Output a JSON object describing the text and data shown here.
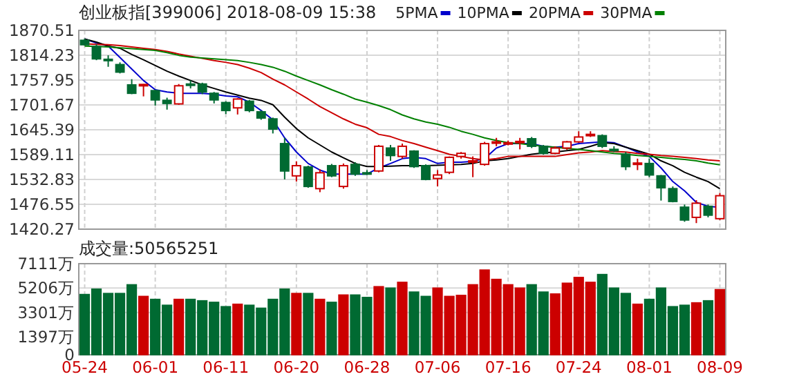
{
  "chart_data": [
    {
      "type": "candlestick",
      "title": "创业板指[399006] 2018-08-09 15:38",
      "ohlc": [
        [
          1848,
          1852,
          1836,
          1838
        ],
        [
          1834,
          1839,
          1803,
          1806
        ],
        [
          1805,
          1814,
          1788,
          1804
        ],
        [
          1793,
          1798,
          1773,
          1776
        ],
        [
          1747,
          1760,
          1726,
          1728
        ],
        [
          1746,
          1749,
          1721,
          1748
        ],
        [
          1734,
          1736,
          1700,
          1713
        ],
        [
          1712,
          1718,
          1691,
          1705
        ],
        [
          1704,
          1749,
          1702,
          1745
        ],
        [
          1749,
          1757,
          1739,
          1747
        ],
        [
          1749,
          1752,
          1726,
          1731
        ],
        [
          1728,
          1731,
          1705,
          1713
        ],
        [
          1707,
          1710,
          1681,
          1689
        ],
        [
          1695,
          1717,
          1680,
          1715
        ],
        [
          1710,
          1713,
          1685,
          1689
        ],
        [
          1686,
          1689,
          1668,
          1672
        ],
        [
          1670,
          1673,
          1637,
          1647
        ],
        [
          1614,
          1627,
          1533,
          1552
        ],
        [
          1541,
          1574,
          1528,
          1564
        ],
        [
          1561,
          1564,
          1514,
          1517
        ],
        [
          1512,
          1556,
          1504,
          1548
        ],
        [
          1564,
          1568,
          1538,
          1541
        ],
        [
          1517,
          1569,
          1512,
          1564
        ],
        [
          1567,
          1572,
          1541,
          1545
        ],
        [
          1548,
          1554,
          1543,
          1547
        ],
        [
          1552,
          1611,
          1549,
          1608
        ],
        [
          1604,
          1611,
          1575,
          1587
        ],
        [
          1585,
          1614,
          1580,
          1608
        ],
        [
          1597,
          1599,
          1559,
          1562
        ],
        [
          1564,
          1567,
          1531,
          1533
        ],
        [
          1535,
          1554,
          1517,
          1543
        ],
        [
          1549,
          1585,
          1545,
          1583
        ],
        [
          1585,
          1595,
          1580,
          1592
        ],
        [
          1574,
          1585,
          1538,
          1575
        ],
        [
          1567,
          1618,
          1564,
          1614
        ],
        [
          1617,
          1627,
          1608,
          1618
        ],
        [
          1615,
          1621,
          1610,
          1616
        ],
        [
          1618,
          1627,
          1601,
          1619
        ],
        [
          1625,
          1629,
          1604,
          1608
        ],
        [
          1608,
          1611,
          1589,
          1592
        ],
        [
          1592,
          1608,
          1590,
          1604
        ],
        [
          1604,
          1620,
          1600,
          1618
        ],
        [
          1618,
          1642,
          1616,
          1629
        ],
        [
          1634,
          1642,
          1629,
          1635
        ],
        [
          1632,
          1635,
          1604,
          1608
        ],
        [
          1601,
          1608,
          1595,
          1600
        ],
        [
          1590,
          1595,
          1554,
          1562
        ],
        [
          1568,
          1580,
          1554,
          1570
        ],
        [
          1569,
          1580,
          1538,
          1543
        ],
        [
          1541,
          1543,
          1485,
          1514
        ],
        [
          1512,
          1517,
          1481,
          1483
        ],
        [
          1470,
          1476,
          1437,
          1441
        ],
        [
          1447,
          1486,
          1434,
          1479
        ],
        [
          1472,
          1476,
          1447,
          1452
        ],
        [
          1444,
          1502,
          1441,
          1496
        ]
      ],
      "series": [
        {
          "name": "5PMA",
          "type": "line",
          "color": "#0000cc",
          "values": [
            1851,
            1842,
            1835,
            1809,
            1783,
            1757,
            1736,
            1731,
            1728,
            1728,
            1728,
            1726,
            1722,
            1720,
            1708,
            1689,
            1668,
            1627,
            1595,
            1569,
            1554,
            1545,
            1545,
            1545,
            1545,
            1559,
            1569,
            1580,
            1583,
            1580,
            1569,
            1572,
            1572,
            1574,
            1580,
            1604,
            1614,
            1614,
            1614,
            1608,
            1606,
            1608,
            1614,
            1616,
            1618,
            1616,
            1606,
            1595,
            1585,
            1559,
            1528,
            1507,
            1481,
            1472,
            1470
          ]
        },
        {
          "name": "10PMA",
          "type": "line",
          "color": "#000000",
          "values": [
            1851,
            1844,
            1835,
            1830,
            1816,
            1804,
            1791,
            1778,
            1767,
            1757,
            1747,
            1739,
            1731,
            1724,
            1717,
            1712,
            1702,
            1674,
            1648,
            1627,
            1611,
            1595,
            1582,
            1569,
            1562,
            1562,
            1563,
            1564,
            1564,
            1564,
            1565,
            1566,
            1567,
            1569,
            1575,
            1577,
            1580,
            1585,
            1590,
            1593,
            1595,
            1598,
            1601,
            1608,
            1616,
            1614,
            1606,
            1598,
            1590,
            1575,
            1564,
            1549,
            1538,
            1528,
            1512
          ]
        },
        {
          "name": "20PMA",
          "type": "line",
          "color": "#cc0000",
          "values": [
            1840,
            1839,
            1838,
            1836,
            1833,
            1830,
            1827,
            1823,
            1817,
            1812,
            1807,
            1802,
            1798,
            1793,
            1785,
            1775,
            1760,
            1747,
            1731,
            1715,
            1698,
            1684,
            1670,
            1658,
            1650,
            1635,
            1630,
            1621,
            1614,
            1606,
            1598,
            1590,
            1585,
            1580,
            1577,
            1580,
            1585,
            1585,
            1585,
            1585,
            1585,
            1589,
            1593,
            1595,
            1598,
            1596,
            1595,
            1592,
            1590,
            1587,
            1585,
            1583,
            1580,
            1577,
            1575
          ]
        },
        {
          "name": "30PMA",
          "type": "line",
          "color": "#008000",
          "values": [
            1835,
            1834,
            1833,
            1831,
            1829,
            1827,
            1825,
            1820,
            1814,
            1810,
            1808,
            1806,
            1804,
            1802,
            1798,
            1793,
            1787,
            1778,
            1767,
            1757,
            1747,
            1736,
            1726,
            1715,
            1708,
            1700,
            1691,
            1679,
            1670,
            1663,
            1658,
            1651,
            1642,
            1635,
            1627,
            1621,
            1616,
            1614,
            1611,
            1608,
            1606,
            1603,
            1601,
            1598,
            1595,
            1592,
            1590,
            1587,
            1585,
            1583,
            1580,
            1578,
            1575,
            1570,
            1566
          ]
        }
      ],
      "ylim": [
        1420.27,
        1870.51
      ],
      "yticks": [
        1420.27,
        1476.55,
        1532.83,
        1589.11,
        1645.39,
        1701.67,
        1757.95,
        1814.23,
        1870.51
      ],
      "grid": true,
      "legend": "top",
      "tick_labels": "y"
    },
    {
      "type": "bar",
      "title": "成交量:50565251",
      "categories": [
        "05-24",
        null,
        null,
        null,
        null,
        null,
        "06-01",
        null,
        null,
        null,
        null,
        null,
        "06-11",
        null,
        null,
        null,
        null,
        null,
        "06-20",
        null,
        null,
        null,
        null,
        null,
        "06-28",
        null,
        null,
        null,
        null,
        null,
        "07-06",
        null,
        null,
        null,
        null,
        null,
        "07-16",
        null,
        null,
        null,
        null,
        null,
        "07-24",
        null,
        null,
        null,
        null,
        null,
        "08-01",
        null,
        null,
        null,
        null,
        null,
        "08-09"
      ],
      "values": [
        4710,
        5130,
        4790,
        4790,
        5470,
        4560,
        4330,
        3870,
        4330,
        4330,
        4220,
        4100,
        3760,
        3950,
        3870,
        3640,
        4330,
        5130,
        4790,
        4790,
        4330,
        4100,
        4670,
        4670,
        4480,
        5320,
        5210,
        5660,
        4900,
        4560,
        5210,
        4560,
        4640,
        5470,
        6620,
        5890,
        5470,
        5210,
        5470,
        4900,
        4750,
        5590,
        6040,
        5660,
        6270,
        5210,
        4790,
        3950,
        4330,
        5210,
        3760,
        3870,
        4060,
        4220,
        5090
      ],
      "colors": [
        "#006a32",
        "#006a32",
        "#006a32",
        "#006a32",
        "#006a32",
        "#cc0000",
        "#006a32",
        "#006a32",
        "#cc0000",
        "#006a32",
        "#006a32",
        "#006a32",
        "#006a32",
        "#cc0000",
        "#006a32",
        "#006a32",
        "#006a32",
        "#006a32",
        "#cc0000",
        "#006a32",
        "#cc0000",
        "#006a32",
        "#cc0000",
        "#006a32",
        "#006a32",
        "#cc0000",
        "#006a32",
        "#cc0000",
        "#006a32",
        "#006a32",
        "#cc0000",
        "#cc0000",
        "#cc0000",
        "#cc0000",
        "#cc0000",
        "#cc0000",
        "#cc0000",
        "#cc0000",
        "#006a32",
        "#006a32",
        "#cc0000",
        "#cc0000",
        "#cc0000",
        "#cc0000",
        "#006a32",
        "#006a32",
        "#006a32",
        "#cc0000",
        "#006a32",
        "#006a32",
        "#006a32",
        "#006a32",
        "#cc0000",
        "#006a32",
        "#cc0000"
      ],
      "ylim": [
        0,
        7111
      ],
      "yticks": [
        0,
        {
          "value": 1397,
          "label": "1397万"
        },
        {
          "value": 3301,
          "label": "3301万"
        },
        {
          "value": 5206,
          "label": "5206万"
        },
        {
          "value": 7111,
          "label": "7111万"
        }
      ],
      "grid": true
    }
  ]
}
